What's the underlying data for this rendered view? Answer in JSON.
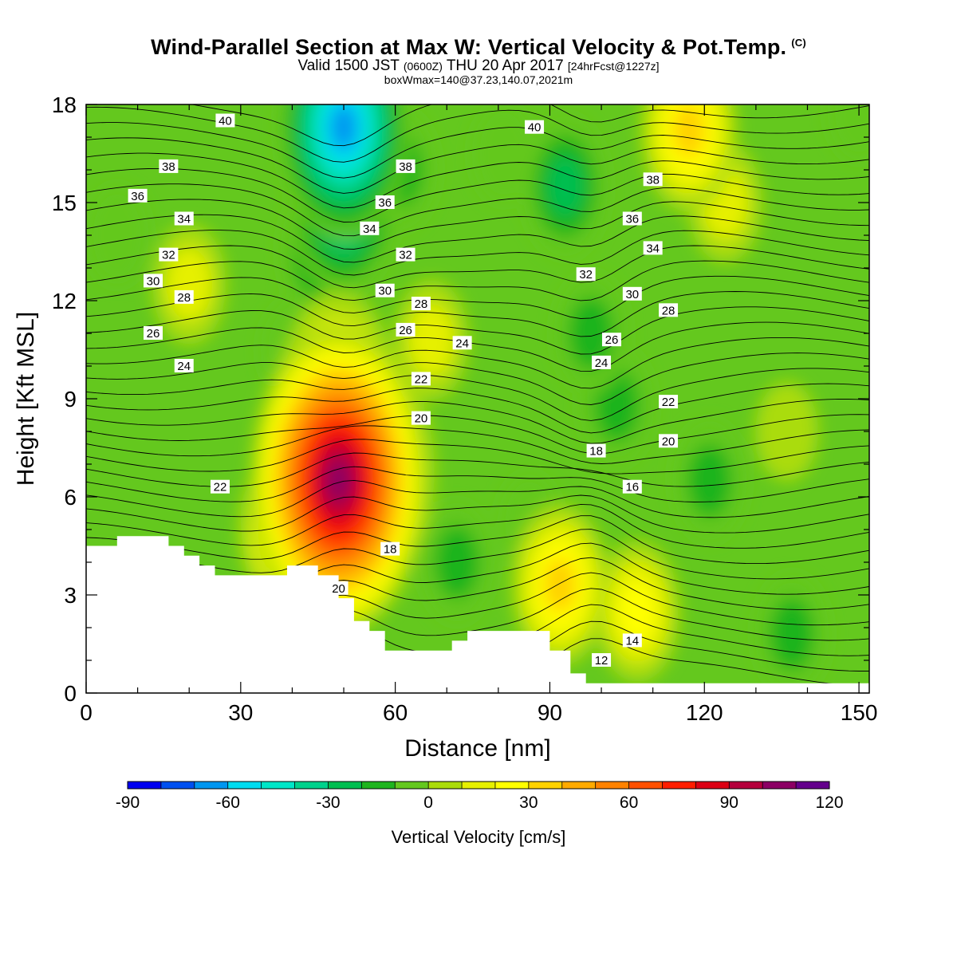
{
  "title": {
    "main": "Wind-Parallel Section at Max W: Vertical Velocity & Pot.Temp.",
    "copyright": "(C)",
    "valid_prefix": "Valid 1500 JST",
    "valid_utc": "(0600Z)",
    "valid_date": "THU 20 Apr 2017",
    "forecast": "[24hrFcst@1227z]",
    "box_info": "boxWmax=140@37.23,140.07,2021m"
  },
  "chart_data": {
    "type": "heatmap",
    "xlabel": "Distance [nm]",
    "ylabel": "Height [Kft MSL]",
    "xlim": [
      0,
      152
    ],
    "ylim": [
      0,
      18
    ],
    "x_ticks": [
      0,
      30,
      60,
      90,
      120,
      150
    ],
    "y_ticks": [
      0,
      3,
      6,
      9,
      12,
      15,
      18
    ],
    "colorbar": {
      "title": "Vertical Velocity [cm/s]",
      "levels": [
        -90,
        -80,
        -70,
        -60,
        -50,
        -40,
        -30,
        -20,
        -10,
        0,
        10,
        20,
        30,
        40,
        50,
        60,
        70,
        80,
        90,
        100,
        110,
        120
      ],
      "tick_labels": [
        "-90",
        "-60",
        "-30",
        "0",
        "30",
        "60",
        "90",
        "120"
      ],
      "colors": [
        "#0000f0",
        "#0050f0",
        "#0096f0",
        "#00dcf0",
        "#00e6c8",
        "#00d28c",
        "#00be50",
        "#1eb41e",
        "#64c81e",
        "#aadc0a",
        "#e6f000",
        "#ffff00",
        "#ffd200",
        "#ffaa00",
        "#ff8200",
        "#ff5000",
        "#ff1e00",
        "#dc0014",
        "#b4003c",
        "#8c0064",
        "#64008c"
      ]
    },
    "terrain_height_kft": [
      [
        0,
        4.5
      ],
      [
        6,
        4.5
      ],
      [
        6,
        4.8
      ],
      [
        16,
        4.8
      ],
      [
        16,
        4.5
      ],
      [
        19,
        4.5
      ],
      [
        19,
        4.2
      ],
      [
        22,
        4.2
      ],
      [
        22,
        3.9
      ],
      [
        25,
        3.9
      ],
      [
        25,
        3.6
      ],
      [
        39,
        3.6
      ],
      [
        39,
        3.9
      ],
      [
        45,
        3.9
      ],
      [
        45,
        3.6
      ],
      [
        49,
        3.6
      ],
      [
        49,
        2.9
      ],
      [
        52,
        2.9
      ],
      [
        52,
        2.2
      ],
      [
        55,
        2.2
      ],
      [
        55,
        1.9
      ],
      [
        58,
        1.9
      ],
      [
        58,
        1.3
      ],
      [
        71,
        1.3
      ],
      [
        71,
        1.6
      ],
      [
        74,
        1.6
      ],
      [
        74,
        1.9
      ],
      [
        90,
        1.9
      ],
      [
        90,
        1.3
      ],
      [
        94,
        1.3
      ],
      [
        94,
        0.6
      ],
      [
        97,
        0.6
      ],
      [
        97,
        0.3
      ],
      [
        152,
        0.3
      ]
    ],
    "w_features_cm_s": [
      {
        "x": 49,
        "y": 6.5,
        "w": 115
      },
      {
        "x": 49,
        "y": 8.5,
        "w": 75
      },
      {
        "x": 55,
        "y": 6.8,
        "w": 70
      },
      {
        "x": 49,
        "y": 9.5,
        "w": 50
      },
      {
        "x": 39,
        "y": 5.0,
        "w": 40
      },
      {
        "x": 92,
        "y": 3.3,
        "w": 45
      },
      {
        "x": 107,
        "y": 2.5,
        "w": 30
      },
      {
        "x": 20,
        "y": 12.5,
        "w": 25
      },
      {
        "x": 67,
        "y": 10.8,
        "w": 25
      },
      {
        "x": 117,
        "y": 17.2,
        "w": 45
      },
      {
        "x": 124,
        "y": 15.0,
        "w": 20
      },
      {
        "x": 136,
        "y": 8.0,
        "w": 8
      },
      {
        "x": 50,
        "y": 17.3,
        "w": -75
      },
      {
        "x": 50,
        "y": 15.0,
        "w": -55
      },
      {
        "x": 46,
        "y": 13.5,
        "w": -35
      },
      {
        "x": 93,
        "y": 15.5,
        "w": -32
      },
      {
        "x": 98,
        "y": 11.0,
        "w": -28
      },
      {
        "x": 103,
        "y": 8.8,
        "w": -22
      },
      {
        "x": 72,
        "y": 4.0,
        "w": -25
      },
      {
        "x": 86,
        "y": 5.2,
        "w": -18
      },
      {
        "x": 121,
        "y": 6.5,
        "w": -20
      },
      {
        "x": 137,
        "y": 1.8,
        "w": -22
      },
      {
        "x": 6,
        "y": 14.0,
        "w": -15
      },
      {
        "x": 61,
        "y": 16.0,
        "w": -20
      },
      {
        "x": 81,
        "y": 16.5,
        "w": -18
      },
      {
        "x": 40,
        "y": 10.5,
        "w": -15
      },
      {
        "x": 150,
        "y": 17.8,
        "w": -18
      }
    ],
    "theta_contours": [
      {
        "label": "40",
        "label_x": 27,
        "label_y": 17.5
      },
      {
        "label": "38",
        "label_x": 16,
        "label_y": 16.1
      },
      {
        "label": "36",
        "label_x": 10,
        "label_y": 15.2
      },
      {
        "label": "34",
        "label_x": 19,
        "label_y": 14.5
      },
      {
        "label": "32",
        "label_x": 16,
        "label_y": 13.4
      },
      {
        "label": "30",
        "label_x": 13,
        "label_y": 12.6
      },
      {
        "label": "28",
        "label_x": 19,
        "label_y": 12.1
      },
      {
        "label": "26",
        "label_x": 13,
        "label_y": 11.0
      },
      {
        "label": "24",
        "label_x": 19,
        "label_y": 10.0
      },
      {
        "label": "22",
        "label_x": 26,
        "label_y": 6.3
      },
      {
        "label": "40",
        "label_x": 87,
        "label_y": 17.3
      },
      {
        "label": "38",
        "label_x": 62,
        "label_y": 16.1
      },
      {
        "label": "36",
        "label_x": 58,
        "label_y": 15.0
      },
      {
        "label": "34",
        "label_x": 55,
        "label_y": 14.2
      },
      {
        "label": "32",
        "label_x": 62,
        "label_y": 13.4
      },
      {
        "label": "30",
        "label_x": 58,
        "label_y": 12.3
      },
      {
        "label": "28",
        "label_x": 65,
        "label_y": 11.9
      },
      {
        "label": "26",
        "label_x": 62,
        "label_y": 11.1
      },
      {
        "label": "24",
        "label_x": 73,
        "label_y": 10.7
      },
      {
        "label": "22",
        "label_x": 65,
        "label_y": 9.6
      },
      {
        "label": "20",
        "label_x": 65,
        "label_y": 8.4
      },
      {
        "label": "18",
        "label_x": 59,
        "label_y": 4.4
      },
      {
        "label": "20",
        "label_x": 49,
        "label_y": 3.2
      },
      {
        "label": "38",
        "label_x": 110,
        "label_y": 15.7
      },
      {
        "label": "36",
        "label_x": 106,
        "label_y": 14.5
      },
      {
        "label": "34",
        "label_x": 110,
        "label_y": 13.6
      },
      {
        "label": "32",
        "label_x": 97,
        "label_y": 12.8
      },
      {
        "label": "30",
        "label_x": 106,
        "label_y": 12.2
      },
      {
        "label": "28",
        "label_x": 113,
        "label_y": 11.7
      },
      {
        "label": "26",
        "label_x": 102,
        "label_y": 10.8
      },
      {
        "label": "24",
        "label_x": 100,
        "label_y": 10.1
      },
      {
        "label": "22",
        "label_x": 113,
        "label_y": 8.9
      },
      {
        "label": "20",
        "label_x": 113,
        "label_y": 7.7
      },
      {
        "label": "18",
        "label_x": 99,
        "label_y": 7.4
      },
      {
        "label": "16",
        "label_x": 106,
        "label_y": 6.3
      },
      {
        "label": "14",
        "label_x": 106,
        "label_y": 1.6
      },
      {
        "label": "12",
        "label_x": 100,
        "label_y": 1.0
      }
    ]
  }
}
